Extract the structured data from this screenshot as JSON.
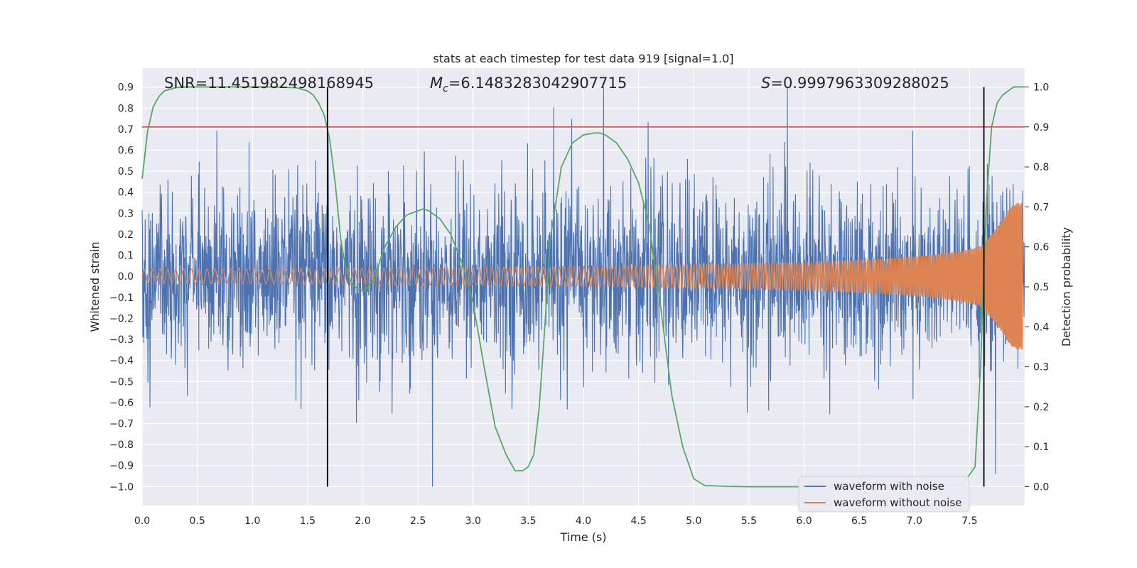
{
  "chart_data": {
    "type": "line",
    "title": "stats at each timestep for test data 919 [signal=1.0]",
    "xlabel": "Time (s)",
    "ylabel": "Whitened strain",
    "y2label": "Detection probability",
    "xlim": [
      0.0,
      8.0
    ],
    "ylim": [
      -1.09,
      0.99
    ],
    "y2lim": [
      -0.047,
      1.047
    ],
    "x_ticks": [
      "0.0",
      "0.5",
      "1.0",
      "1.5",
      "2.0",
      "2.5",
      "3.0",
      "3.5",
      "4.0",
      "4.5",
      "5.0",
      "5.5",
      "6.0",
      "6.5",
      "7.0",
      "7.5"
    ],
    "y_ticks": [
      "0.9",
      "0.8",
      "0.7",
      "0.6",
      "0.5",
      "0.4",
      "0.3",
      "0.2",
      "0.1",
      "0.0",
      "−0.1",
      "−0.2",
      "−0.3",
      "−0.4",
      "−0.5",
      "−0.6",
      "−0.7",
      "−0.8",
      "−0.9",
      "−1.0"
    ],
    "y2_ticks": [
      "1.0",
      "0.9",
      "0.8",
      "0.7",
      "0.6",
      "0.5",
      "0.4",
      "0.3",
      "0.2",
      "0.1",
      "0.0"
    ],
    "grid": true,
    "legend_position": "lower-right",
    "annotations": {
      "snr": "SNR=11.451982498168945",
      "mc_symbol": "M",
      "mc_sub": "c",
      "mc_value": "=6.1483283042907715",
      "s_symbol": "S",
      "s_value": "=0.9997963309288025"
    },
    "threshold_line": {
      "y2": 0.9,
      "color": "#c44e52"
    },
    "vertical_lines": [
      1.68,
      7.63
    ],
    "series": [
      {
        "name": "waveform with noise",
        "color": "#4c72b0",
        "noise_envelope": {
          "positive_peak_max": 0.9,
          "negative_peak_min": -1.0,
          "typical_range": [
            -0.5,
            0.5
          ]
        }
      },
      {
        "name": "waveform without noise",
        "color": "#dd8452",
        "chirp": {
          "amplitude_start": 0.04,
          "amplitude_end": 0.35,
          "frequency_start_hz": 14,
          "frequency_end_hz": 120
        }
      },
      {
        "name": "detection probability",
        "color": "#55a868",
        "axis": "y2",
        "x": [
          0.0,
          0.05,
          0.1,
          0.15,
          0.2,
          0.3,
          0.4,
          0.6,
          0.8,
          1.0,
          1.2,
          1.4,
          1.5,
          1.55,
          1.6,
          1.65,
          1.7,
          1.75,
          1.8,
          1.85,
          1.9,
          1.95,
          2.0,
          2.05,
          2.1,
          2.2,
          2.3,
          2.4,
          2.5,
          2.55,
          2.6,
          2.7,
          2.8,
          2.9,
          3.0,
          3.1,
          3.2,
          3.3,
          3.38,
          3.45,
          3.5,
          3.55,
          3.6,
          3.65,
          3.7,
          3.8,
          3.9,
          4.0,
          4.1,
          4.15,
          4.2,
          4.3,
          4.4,
          4.5,
          4.6,
          4.7,
          4.8,
          4.9,
          5.0,
          5.1,
          5.3,
          5.5,
          6.0,
          6.5,
          7.0,
          7.3,
          7.4,
          7.45,
          7.5,
          7.55,
          7.6,
          7.65,
          7.7,
          7.75,
          7.8,
          7.9,
          8.0
        ],
        "values": [
          0.77,
          0.89,
          0.95,
          0.975,
          0.99,
          0.998,
          1.0,
          1.0,
          1.0,
          1.0,
          1.0,
          0.998,
          0.99,
          0.98,
          0.96,
          0.93,
          0.87,
          0.76,
          0.62,
          0.54,
          0.51,
          0.495,
          0.49,
          0.5,
          0.52,
          0.6,
          0.65,
          0.68,
          0.69,
          0.695,
          0.69,
          0.67,
          0.63,
          0.56,
          0.46,
          0.3,
          0.15,
          0.08,
          0.04,
          0.04,
          0.05,
          0.08,
          0.2,
          0.4,
          0.62,
          0.8,
          0.86,
          0.88,
          0.885,
          0.885,
          0.88,
          0.86,
          0.82,
          0.76,
          0.65,
          0.45,
          0.23,
          0.1,
          0.02,
          0.003,
          0.001,
          0.0,
          0.0,
          0.0,
          0.0,
          0.003,
          0.005,
          0.01,
          0.03,
          0.05,
          0.3,
          0.7,
          0.9,
          0.96,
          0.98,
          1.0,
          1.0
        ]
      }
    ]
  }
}
